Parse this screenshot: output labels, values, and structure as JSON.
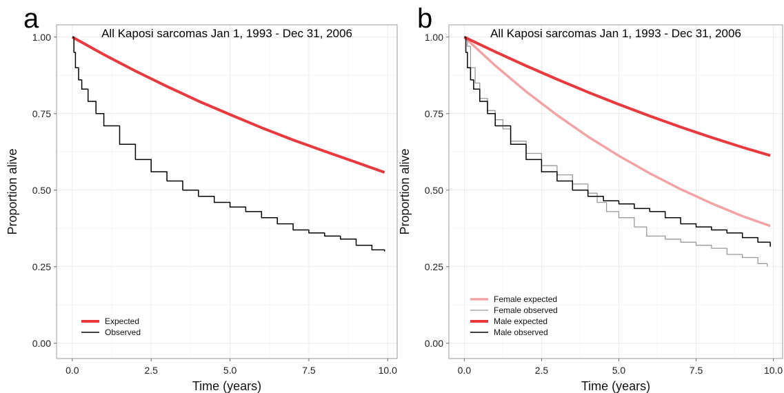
{
  "chart_data": [
    {
      "type": "line",
      "panel": "a",
      "title": "All Kaposi sarcomas Jan 1, 1993 - Dec 31, 2006",
      "xlabel": "Time (years)",
      "ylabel": "Proportion alive",
      "xlim": [
        -0.5,
        10.3
      ],
      "ylim": [
        -0.05,
        1.04
      ],
      "xticks": [
        "0.0",
        "2.5",
        "5.0",
        "7.5",
        "10.0"
      ],
      "yticks": [
        "0.00",
        "0.25",
        "0.50",
        "0.75",
        "1.00"
      ],
      "grid": true,
      "legend_position": "bottom-left",
      "series": [
        {
          "name": "Expected",
          "color": "#e8393f",
          "width": 4,
          "step": false,
          "points": [
            [
              0,
              1.0
            ],
            [
              1,
              0.943
            ],
            [
              2,
              0.889
            ],
            [
              3,
              0.839
            ],
            [
              4,
              0.791
            ],
            [
              5,
              0.747
            ],
            [
              6,
              0.704
            ],
            [
              7,
              0.664
            ],
            [
              8,
              0.627
            ],
            [
              9,
              0.591
            ],
            [
              9.9,
              0.558
            ]
          ]
        },
        {
          "name": "Observed",
          "color": "#000000",
          "width": 1.5,
          "step": true,
          "points": [
            [
              0,
              1.0
            ],
            [
              0.05,
              0.95
            ],
            [
              0.1,
              0.9
            ],
            [
              0.2,
              0.86
            ],
            [
              0.3,
              0.83
            ],
            [
              0.5,
              0.79
            ],
            [
              0.75,
              0.75
            ],
            [
              1,
              0.71
            ],
            [
              1.5,
              0.65
            ],
            [
              2,
              0.6
            ],
            [
              2.5,
              0.56
            ],
            [
              3,
              0.53
            ],
            [
              3.5,
              0.5
            ],
            [
              4,
              0.48
            ],
            [
              4.5,
              0.46
            ],
            [
              5,
              0.445
            ],
            [
              5.5,
              0.43
            ],
            [
              6,
              0.41
            ],
            [
              6.5,
              0.39
            ],
            [
              7,
              0.37
            ],
            [
              7.5,
              0.36
            ],
            [
              8,
              0.35
            ],
            [
              8.5,
              0.34
            ],
            [
              9,
              0.32
            ],
            [
              9.5,
              0.305
            ],
            [
              9.9,
              0.3
            ]
          ]
        }
      ]
    },
    {
      "type": "line",
      "panel": "b",
      "title": "All Kaposi sarcomas Jan 1, 1993 - Dec 31, 2006",
      "xlabel": "Time (years)",
      "ylabel": "Proportion alive",
      "xlim": [
        -0.5,
        10.3
      ],
      "ylim": [
        -0.05,
        1.04
      ],
      "xticks": [
        "0.0",
        "2.5",
        "5.0",
        "7.5",
        "10.0"
      ],
      "yticks": [
        "0.00",
        "0.25",
        "0.50",
        "0.75",
        "1.00"
      ],
      "grid": true,
      "legend_position": "bottom-left",
      "series": [
        {
          "name": "Female expected",
          "color": "#f2a3a6",
          "width": 3.5,
          "step": false,
          "points": [
            [
              0,
              1.0
            ],
            [
              1,
              0.907
            ],
            [
              2,
              0.822
            ],
            [
              3,
              0.745
            ],
            [
              4,
              0.675
            ],
            [
              5,
              0.612
            ],
            [
              6,
              0.555
            ],
            [
              7,
              0.503
            ],
            [
              8,
              0.457
            ],
            [
              9,
              0.415
            ],
            [
              9.9,
              0.383
            ]
          ]
        },
        {
          "name": "Female observed",
          "color": "#999999",
          "width": 1.3,
          "step": true,
          "points": [
            [
              0,
              1.0
            ],
            [
              0.1,
              0.97
            ],
            [
              0.2,
              0.9
            ],
            [
              0.35,
              0.85
            ],
            [
              0.5,
              0.8
            ],
            [
              0.75,
              0.76
            ],
            [
              1,
              0.73
            ],
            [
              1.25,
              0.7
            ],
            [
              1.5,
              0.66
            ],
            [
              2,
              0.62
            ],
            [
              2.5,
              0.58
            ],
            [
              3,
              0.55
            ],
            [
              3.5,
              0.52
            ],
            [
              4,
              0.49
            ],
            [
              4.3,
              0.46
            ],
            [
              4.6,
              0.43
            ],
            [
              5,
              0.41
            ],
            [
              5.5,
              0.38
            ],
            [
              5.9,
              0.35
            ],
            [
              6.5,
              0.34
            ],
            [
              7,
              0.33
            ],
            [
              7.5,
              0.32
            ],
            [
              8,
              0.31
            ],
            [
              8.5,
              0.29
            ],
            [
              9,
              0.28
            ],
            [
              9.5,
              0.26
            ],
            [
              9.8,
              0.25
            ]
          ]
        },
        {
          "name": "Male expected",
          "color": "#e8393f",
          "width": 4,
          "step": false,
          "points": [
            [
              0,
              1.0
            ],
            [
              1,
              0.952
            ],
            [
              2,
              0.906
            ],
            [
              3,
              0.862
            ],
            [
              4,
              0.82
            ],
            [
              5,
              0.78
            ],
            [
              6,
              0.742
            ],
            [
              7,
              0.706
            ],
            [
              8,
              0.672
            ],
            [
              9,
              0.64
            ],
            [
              9.9,
              0.613
            ]
          ]
        },
        {
          "name": "Male observed",
          "color": "#000000",
          "width": 1.5,
          "step": true,
          "points": [
            [
              0,
              1.0
            ],
            [
              0.05,
              0.95
            ],
            [
              0.1,
              0.9
            ],
            [
              0.2,
              0.86
            ],
            [
              0.3,
              0.83
            ],
            [
              0.5,
              0.79
            ],
            [
              0.75,
              0.75
            ],
            [
              1,
              0.71
            ],
            [
              1.5,
              0.65
            ],
            [
              2,
              0.6
            ],
            [
              2.5,
              0.56
            ],
            [
              3,
              0.53
            ],
            [
              3.5,
              0.5
            ],
            [
              4,
              0.48
            ],
            [
              4.5,
              0.465
            ],
            [
              5,
              0.455
            ],
            [
              5.5,
              0.44
            ],
            [
              6,
              0.43
            ],
            [
              6.5,
              0.41
            ],
            [
              7,
              0.39
            ],
            [
              7.5,
              0.38
            ],
            [
              8,
              0.37
            ],
            [
              8.5,
              0.36
            ],
            [
              9,
              0.345
            ],
            [
              9.5,
              0.33
            ],
            [
              9.9,
              0.315
            ]
          ]
        }
      ]
    }
  ]
}
